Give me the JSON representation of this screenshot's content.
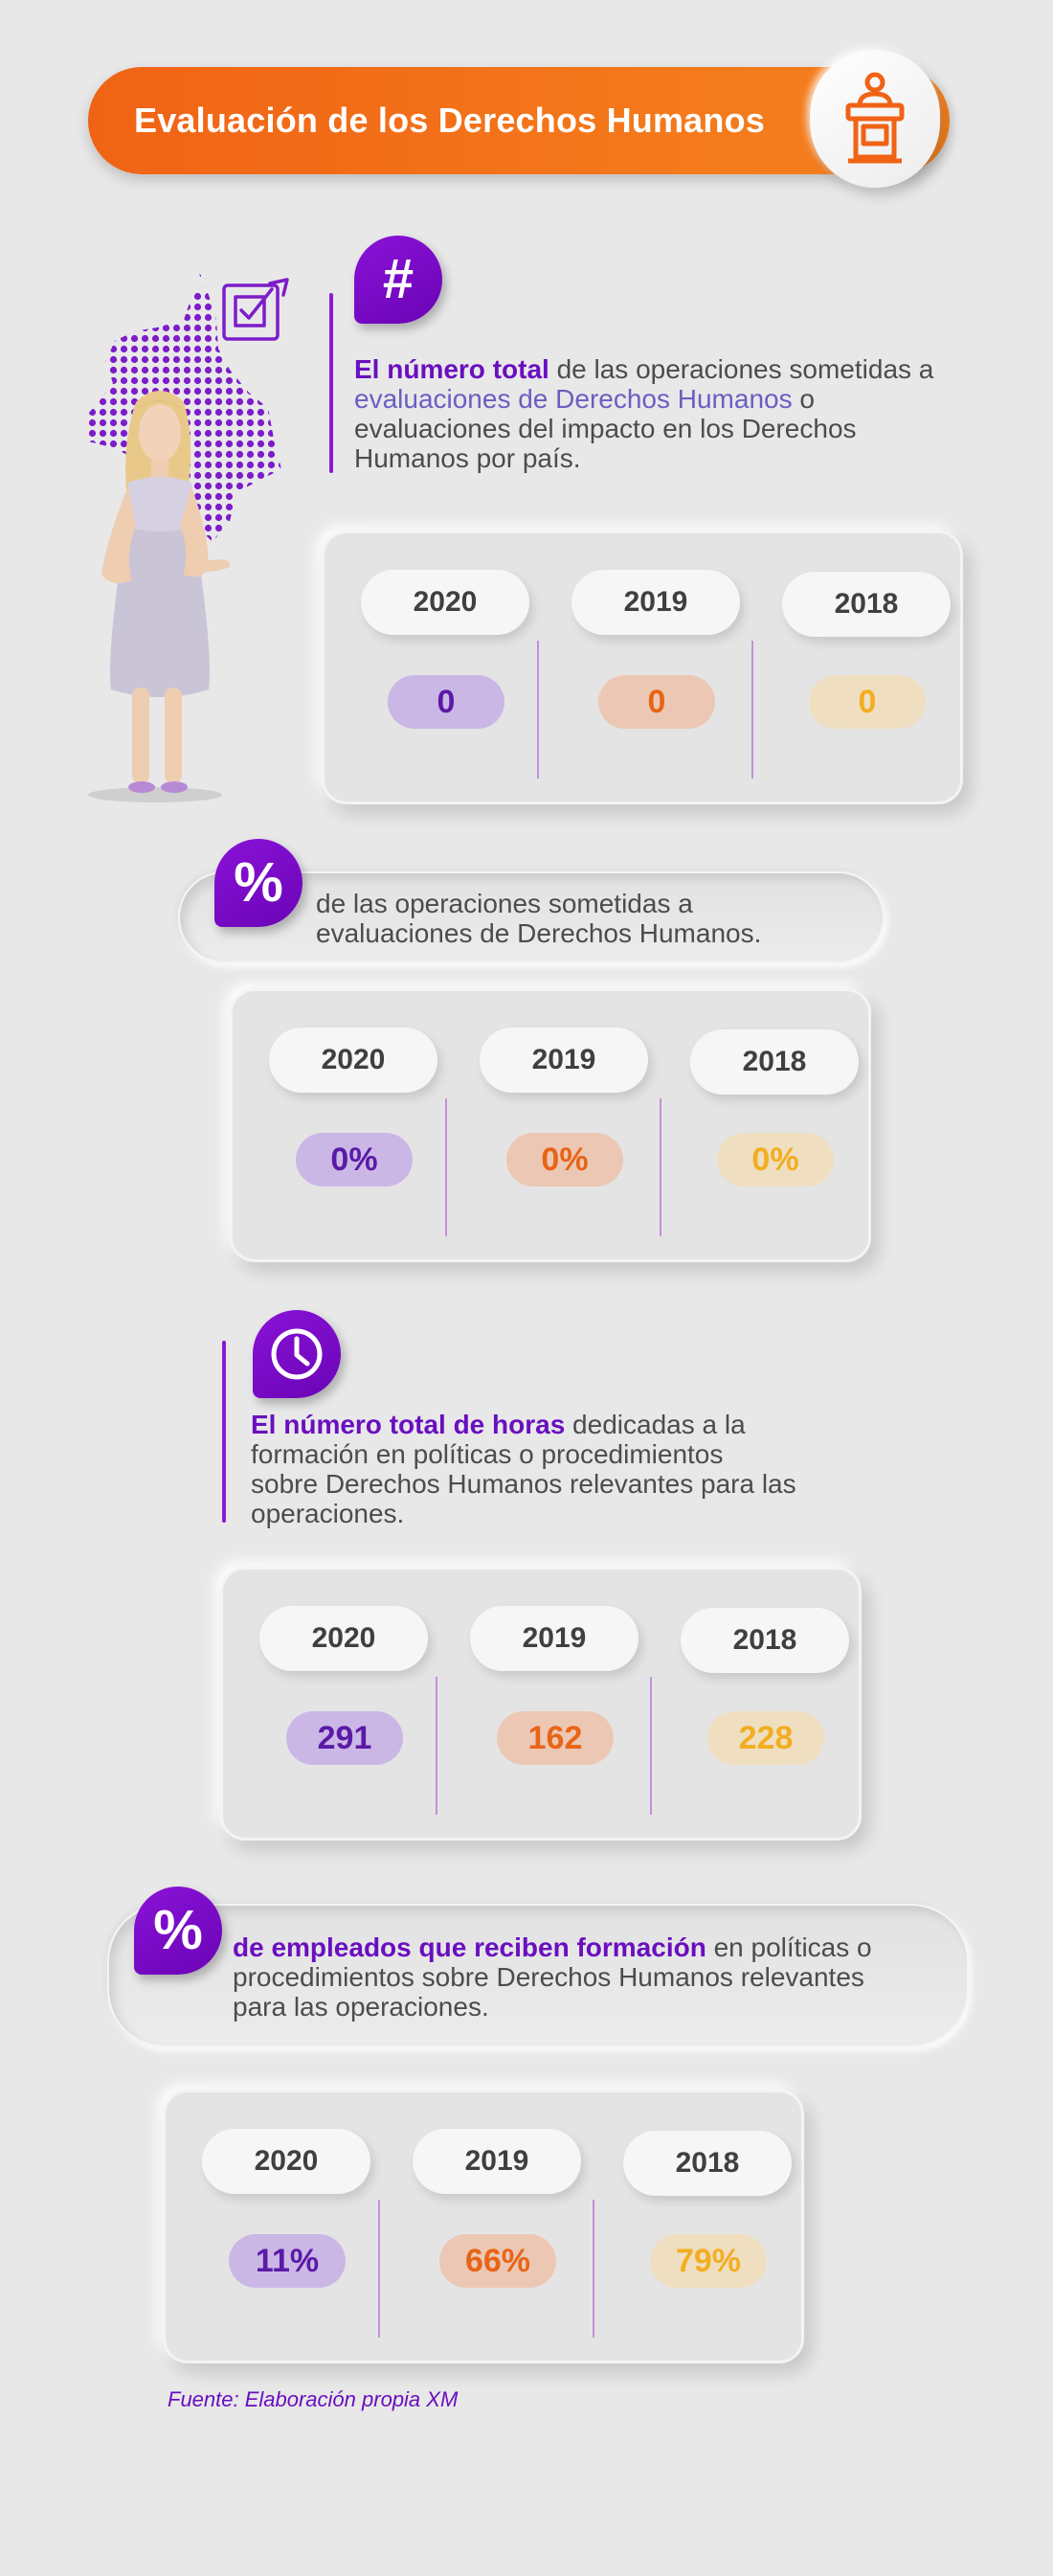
{
  "header": {
    "title": "Evaluación de los Derechos Humanos",
    "icon": "podium-speaker-icon"
  },
  "colors": {
    "purple": "#6a0fbf",
    "orange": "#f06315",
    "amber": "#f3ad22"
  },
  "sections": [
    {
      "icon": "#",
      "text_bold": "El número total",
      "text_1": " de las operaciones sometidas a ",
      "text_link": "evaluaciones de Derechos Humanos",
      "text_2": " o evaluaciones del impacto en los Derechos Humanos por país.",
      "years": [
        "2020",
        "2019",
        "2018"
      ],
      "values": [
        "0",
        "0",
        "0"
      ]
    },
    {
      "icon": "%",
      "text": "de las operaciones sometidas a evaluaciones de Derechos Humanos.",
      "years": [
        "2020",
        "2019",
        "2018"
      ],
      "values": [
        "0%",
        "0%",
        "0%"
      ]
    },
    {
      "icon": "clock-icon",
      "text_bold": "El número total de horas",
      "text_1": " dedicadas a la formación en políticas o procedimientos sobre Derechos Humanos relevantes para las operaciones.",
      "years": [
        "2020",
        "2019",
        "2018"
      ],
      "values": [
        "291",
        "162",
        "228"
      ]
    },
    {
      "icon": "%",
      "text_bold": "de empleados que reciben formación",
      "text_1": " en políticas o procedimientos sobre Derechos Humanos relevantes para las operaciones.",
      "years": [
        "2020",
        "2019",
        "2018"
      ],
      "values": [
        "11%",
        "66%",
        "79%"
      ]
    }
  ],
  "source": "Fuente: Elaboración propia XM"
}
